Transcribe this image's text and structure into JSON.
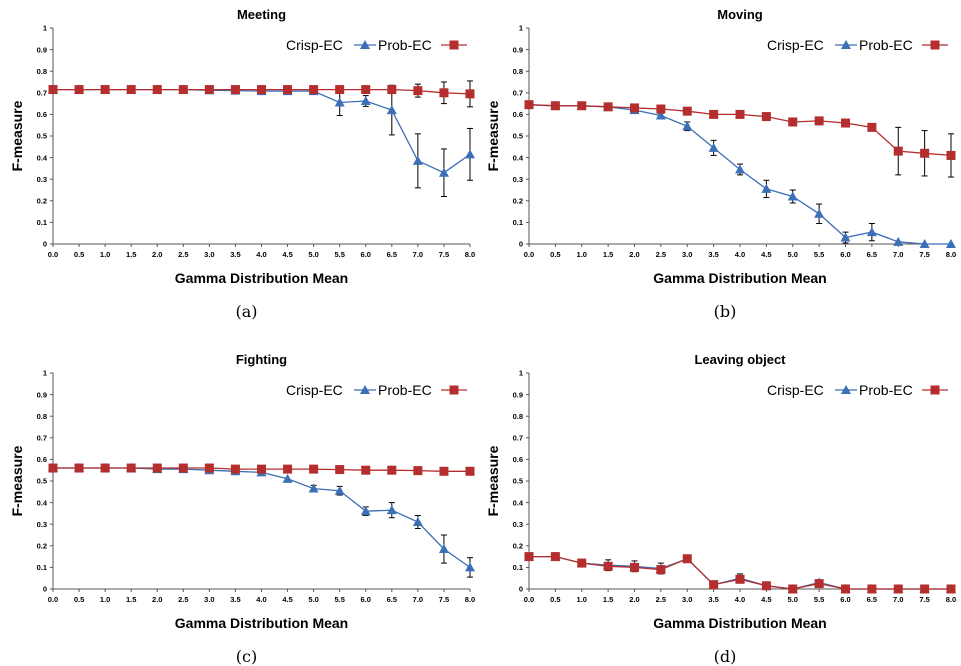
{
  "colors": {
    "crisp": "#3b6fb6",
    "prob": "#b52e2e",
    "axis": "#555555",
    "error_bar": "#000000"
  },
  "chart_data": [
    {
      "type": "line",
      "title": "Meeting",
      "xlabel": "Gamma Distribution Mean",
      "ylabel": "F-measure",
      "caption": "(a)",
      "ylim": [
        0,
        1
      ],
      "legend": "top-right",
      "grid": false,
      "x": [
        0.0,
        0.5,
        1.0,
        1.5,
        2.0,
        2.5,
        3.0,
        3.5,
        4.0,
        4.5,
        5.0,
        5.5,
        6.0,
        6.5,
        7.0,
        7.5,
        8.0
      ],
      "x_tick_labels": [
        "0.0",
        "0.5",
        "1.0",
        "1.5",
        "2.0",
        "2.5",
        "3.0",
        "3.5",
        "4.0",
        "4.5",
        "5.0",
        "5.5",
        "6.0",
        "6.5",
        "7.0",
        "7.5",
        "8.0"
      ],
      "y_ticks": [
        0,
        0.1,
        0.2,
        0.3,
        0.4,
        0.5,
        0.6,
        0.7,
        0.8,
        0.9,
        1
      ],
      "y_tick_labels": [
        "0",
        "0.1",
        "0.2",
        "0.3",
        "0.4",
        "0.5",
        "0.6",
        "0.7",
        "0.8",
        "0.9",
        "1"
      ],
      "series": [
        {
          "name": "Crisp-EC",
          "marker": "triangle",
          "values": [
            0.715,
            0.715,
            0.715,
            0.715,
            0.715,
            0.715,
            0.712,
            0.71,
            0.708,
            0.708,
            0.708,
            0.655,
            0.662,
            0.62,
            0.385,
            0.33,
            0.415
          ],
          "errors": [
            0,
            0,
            0,
            0,
            0,
            0,
            0,
            0,
            0,
            0,
            0,
            0.06,
            0.025,
            0.115,
            0.125,
            0.11,
            0.12
          ]
        },
        {
          "name": "Prob-EC",
          "marker": "square",
          "values": [
            0.715,
            0.715,
            0.715,
            0.715,
            0.715,
            0.715,
            0.715,
            0.715,
            0.715,
            0.715,
            0.715,
            0.715,
            0.715,
            0.715,
            0.71,
            0.7,
            0.695
          ],
          "errors": [
            0,
            0,
            0,
            0,
            0,
            0,
            0,
            0,
            0,
            0,
            0,
            0,
            0,
            0,
            0.03,
            0.05,
            0.06
          ]
        }
      ]
    },
    {
      "type": "line",
      "title": "Moving",
      "xlabel": "Gamma Distribution Mean",
      "ylabel": "F-measure",
      "caption": "(b)",
      "ylim": [
        0,
        1
      ],
      "legend": "top-right",
      "grid": false,
      "x": [
        0.0,
        0.5,
        1.0,
        1.5,
        2.0,
        2.5,
        3.0,
        3.5,
        4.0,
        4.5,
        5.0,
        5.5,
        6.0,
        6.5,
        7.0,
        7.5,
        8.0
      ],
      "x_tick_labels": [
        "0.0",
        "0.5",
        "1.0",
        "1.5",
        "2.0",
        "2.5",
        "3.0",
        "3.5",
        "4.0",
        "4.5",
        "5.0",
        "5.5",
        "6.0",
        "6.5",
        "7.0",
        "7.5",
        "8.0"
      ],
      "y_ticks": [
        0,
        0.1,
        0.2,
        0.3,
        0.4,
        0.5,
        0.6,
        0.7,
        0.8,
        0.9,
        1
      ],
      "y_tick_labels": [
        "0",
        "0.1",
        "0.2",
        "0.3",
        "0.4",
        "0.5",
        "0.6",
        "0.7",
        "0.8",
        "0.9",
        "1"
      ],
      "series": [
        {
          "name": "Crisp-EC",
          "marker": "triangle",
          "values": [
            0.645,
            0.64,
            0.64,
            0.635,
            0.62,
            0.595,
            0.545,
            0.445,
            0.345,
            0.255,
            0.22,
            0.14,
            0.03,
            0.055,
            0.01,
            0.0,
            0.0
          ],
          "errors": [
            0,
            0,
            0,
            0,
            0,
            0.01,
            0.02,
            0.035,
            0.025,
            0.04,
            0.03,
            0.045,
            0.025,
            0.04,
            0,
            0,
            0
          ]
        },
        {
          "name": "Prob-EC",
          "marker": "square",
          "values": [
            0.645,
            0.64,
            0.64,
            0.635,
            0.63,
            0.625,
            0.615,
            0.6,
            0.6,
            0.59,
            0.565,
            0.57,
            0.56,
            0.54,
            0.43,
            0.42,
            0.41
          ],
          "errors": [
            0,
            0,
            0,
            0,
            0,
            0,
            0,
            0,
            0,
            0,
            0,
            0,
            0,
            0,
            0.11,
            0.105,
            0.1
          ]
        }
      ]
    },
    {
      "type": "line",
      "title": "Fighting",
      "xlabel": "Gamma Distribution Mean",
      "ylabel": "F-measure",
      "caption": "(c)",
      "ylim": [
        0,
        1
      ],
      "legend": "top-right",
      "grid": false,
      "x": [
        0.0,
        0.5,
        1.0,
        1.5,
        2.0,
        2.5,
        3.0,
        3.5,
        4.0,
        4.5,
        5.0,
        5.5,
        6.0,
        6.5,
        7.0,
        7.5,
        8.0
      ],
      "x_tick_labels": [
        "0.0",
        "0.5",
        "1.0",
        "1.5",
        "2.0",
        "2.5",
        "3.0",
        "3.5",
        "4.0",
        "4.5",
        "5.0",
        "5.5",
        "6.0",
        "6.5",
        "7.0",
        "7.5",
        "8.0"
      ],
      "y_ticks": [
        0,
        0.1,
        0.2,
        0.3,
        0.4,
        0.5,
        0.6,
        0.7,
        0.8,
        0.9,
        1
      ],
      "y_tick_labels": [
        "0",
        "0.1",
        "0.2",
        "0.3",
        "0.4",
        "0.5",
        "0.6",
        "0.7",
        "0.8",
        "0.9",
        "1"
      ],
      "series": [
        {
          "name": "Crisp-EC",
          "marker": "triangle",
          "values": [
            0.56,
            0.56,
            0.56,
            0.56,
            0.555,
            0.555,
            0.55,
            0.545,
            0.54,
            0.51,
            0.465,
            0.455,
            0.36,
            0.365,
            0.31,
            0.185,
            0.1
          ],
          "errors": [
            0,
            0,
            0,
            0,
            0,
            0,
            0,
            0,
            0,
            0,
            0.015,
            0.02,
            0.02,
            0.035,
            0.03,
            0.065,
            0.045
          ]
        },
        {
          "name": "Prob-EC",
          "marker": "square",
          "values": [
            0.56,
            0.56,
            0.56,
            0.56,
            0.56,
            0.56,
            0.56,
            0.555,
            0.555,
            0.555,
            0.555,
            0.553,
            0.55,
            0.55,
            0.548,
            0.545,
            0.545
          ],
          "errors": [
            0,
            0,
            0,
            0,
            0,
            0,
            0,
            0,
            0,
            0,
            0,
            0,
            0,
            0,
            0,
            0,
            0
          ]
        }
      ]
    },
    {
      "type": "line",
      "title": "Leaving object",
      "xlabel": "Gamma Distribution Mean",
      "ylabel": "F-measure",
      "caption": "(d)",
      "ylim": [
        0,
        1
      ],
      "legend": "top-right",
      "grid": false,
      "x": [
        0.0,
        0.5,
        1.0,
        1.5,
        2.0,
        2.5,
        3.0,
        3.5,
        4.0,
        4.5,
        5.0,
        5.5,
        6.0,
        6.5,
        7.0,
        7.5,
        8.0
      ],
      "x_tick_labels": [
        "0.0",
        "0.5",
        "1.0",
        "1.5",
        "2.0",
        "2.5",
        "3.0",
        "3.5",
        "4.0",
        "4.5",
        "5.0",
        "5.5",
        "6.0",
        "6.5",
        "7.0",
        "7.5",
        "8.0"
      ],
      "y_ticks": [
        0,
        0.1,
        0.2,
        0.3,
        0.4,
        0.5,
        0.6,
        0.7,
        0.8,
        0.9,
        1
      ],
      "y_tick_labels": [
        "0",
        "0.1",
        "0.2",
        "0.3",
        "0.4",
        "0.5",
        "0.6",
        "0.7",
        "0.8",
        "0.9",
        "1"
      ],
      "series": [
        {
          "name": "Crisp-EC",
          "marker": "triangle",
          "values": [
            0.15,
            0.15,
            0.12,
            0.11,
            0.105,
            0.095,
            0.14,
            0.02,
            0.05,
            0.015,
            0.0,
            0.03,
            0.0,
            0.0,
            0.0,
            0.0,
            0.0
          ],
          "errors": [
            0,
            0,
            0,
            0.025,
            0.025,
            0.025,
            0.01,
            0.01,
            0.02,
            0,
            0,
            0.01,
            0,
            0,
            0,
            0,
            0
          ]
        },
        {
          "name": "Prob-EC",
          "marker": "square",
          "values": [
            0.15,
            0.15,
            0.12,
            0.105,
            0.1,
            0.09,
            0.14,
            0.02,
            0.045,
            0.015,
            0.0,
            0.025,
            0.0,
            0.0,
            0.0,
            0.0,
            0.0
          ],
          "errors": [
            0,
            0,
            0,
            0,
            0,
            0,
            0,
            0,
            0,
            0,
            0,
            0,
            0,
            0,
            0,
            0,
            0
          ]
        }
      ]
    }
  ]
}
